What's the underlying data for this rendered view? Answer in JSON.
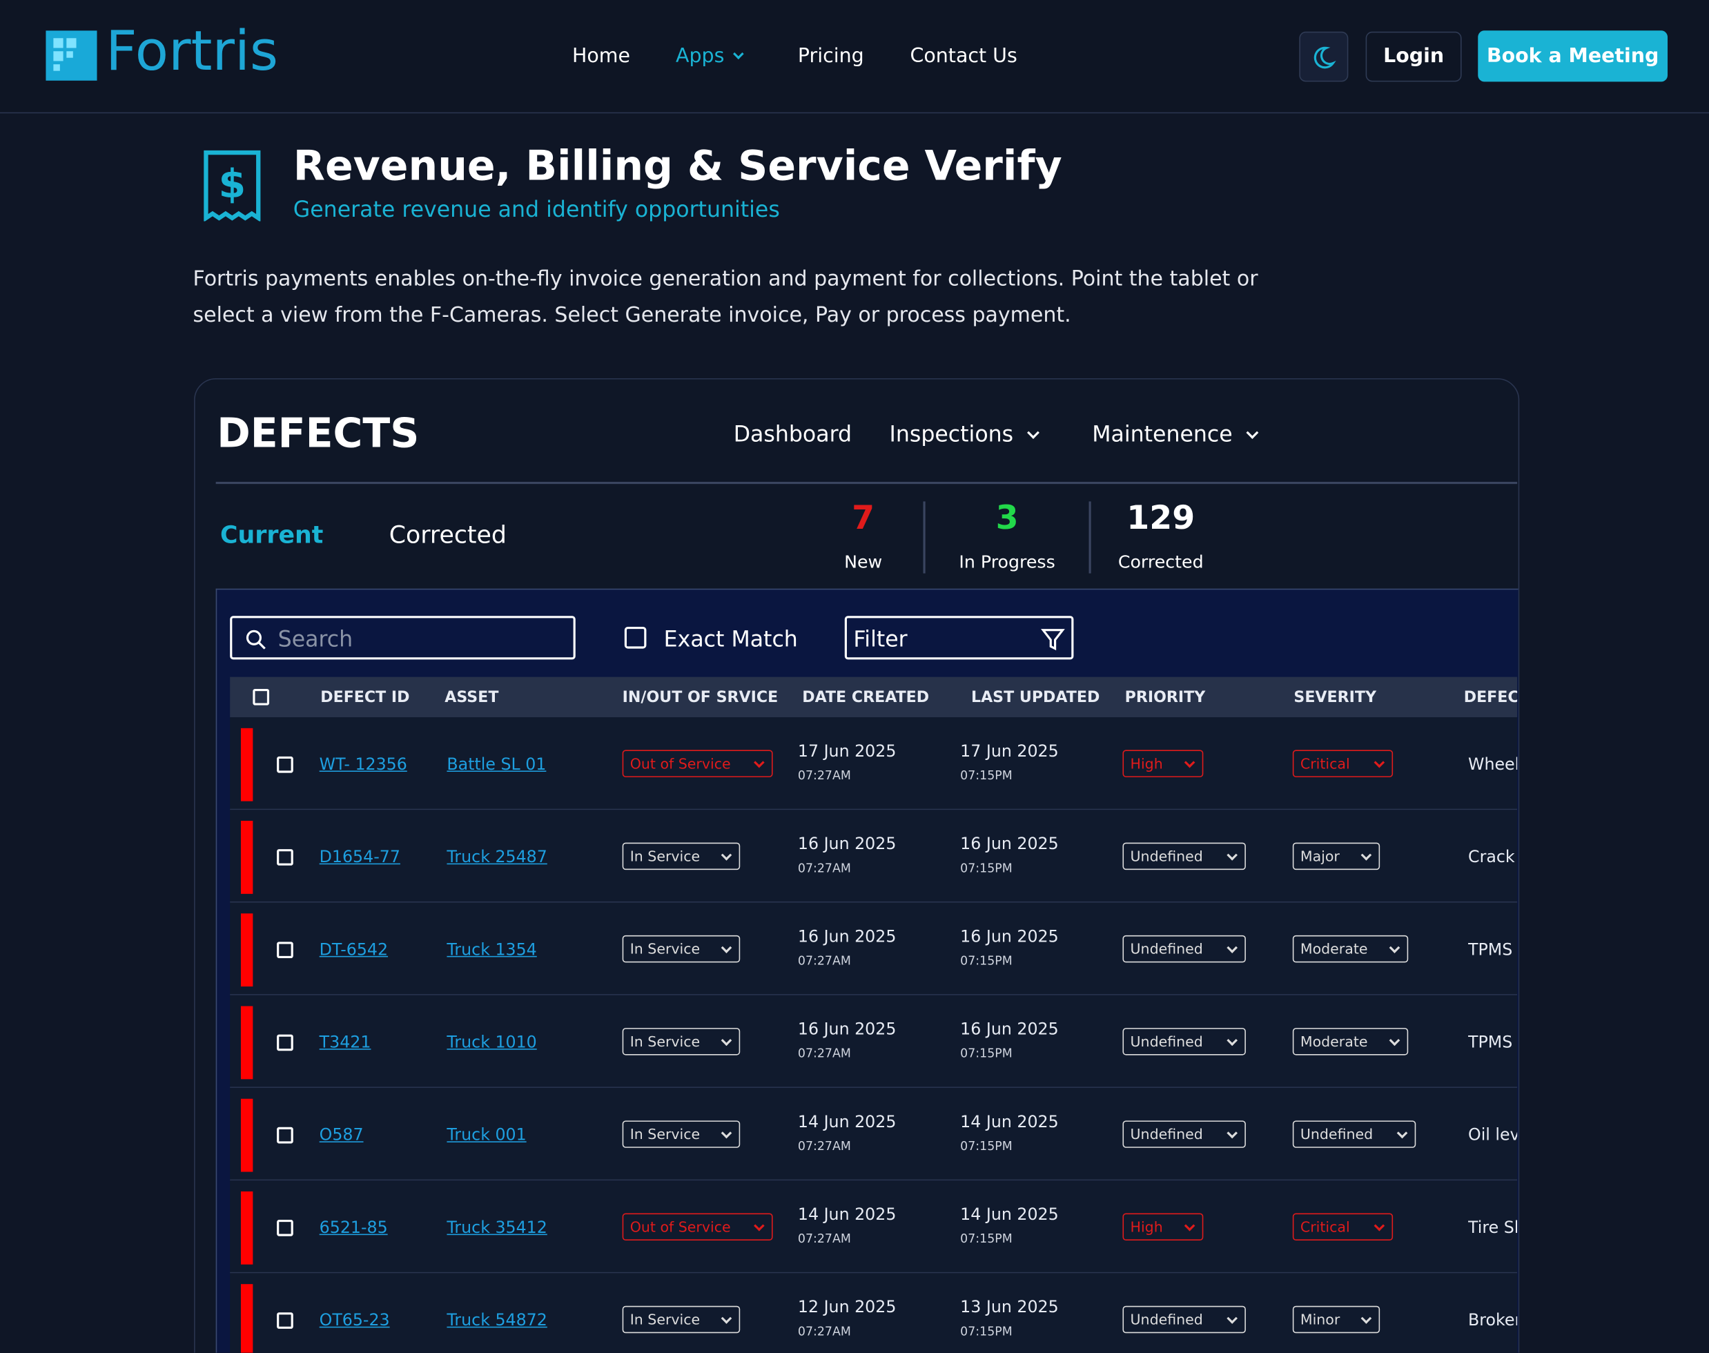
{
  "nav": {
    "brand": "Fortris",
    "links": [
      "Home",
      "Apps",
      "Pricing",
      "Contact Us"
    ],
    "login": "Login",
    "cta": "Book a Meeting"
  },
  "header": {
    "title": "Revenue, Billing & Service Verify",
    "subtitle": "Generate revenue and identify opportunities"
  },
  "description": "Fortris payments enables on-the-fly invoice generation and payment for collections. Point the tablet or select a view from the F-Cameras. Select Generate invoice, Pay or process payment.",
  "app": {
    "title": "DEFECTS",
    "menu": [
      "Dashboard",
      "Inspections",
      "Maintenence"
    ],
    "tabs": [
      "Current",
      "Corrected"
    ],
    "stats": [
      {
        "value": "7",
        "label": "New"
      },
      {
        "value": "3",
        "label": "In Progress"
      },
      {
        "value": "129",
        "label": "Corrected"
      }
    ],
    "search": "Search",
    "exact_match": "Exact Match",
    "filter": "Filter",
    "table": {
      "columns": [
        "DEFECT ID",
        "ASSET",
        "IN/OUT OF SRVICE",
        "DATE CREATED",
        "LAST UPDATED",
        "PRIORITY",
        "SEVERITY",
        "DEFECT"
      ],
      "rows": [
        [
          "WT- 12356",
          "Battle SL 01",
          "Out of Service",
          "17 Jun 2025",
          "07:27AM",
          "17 Jun 2025",
          "07:15PM",
          "High",
          "Critical",
          "Wheel"
        ],
        [
          "D1654-77",
          "Truck 25487",
          "In Service",
          "16 Jun 2025",
          "07:27AM",
          "16 Jun 2025",
          "07:15PM",
          "Undefined",
          "Major",
          "Crack"
        ],
        [
          "DT-6542",
          "Truck 1354",
          "In Service",
          "16 Jun 2025",
          "07:27AM",
          "16 Jun 2025",
          "07:15PM",
          "Undefined",
          "Moderate",
          "TPMS"
        ],
        [
          "T3421",
          "Truck 1010",
          "In Service",
          "16 Jun 2025",
          "07:27AM",
          "16 Jun 2025",
          "07:15PM",
          "Undefined",
          "Moderate",
          "TPMS"
        ],
        [
          "O587",
          "Truck 001",
          "In Service",
          "14 Jun 2025",
          "07:27AM",
          "14 Jun 2025",
          "07:15PM",
          "Undefined",
          "Undefined",
          "Oil lev"
        ],
        [
          "6521-85",
          "Truck 35412",
          "Out of Service",
          "14 Jun 2025",
          "07:27AM",
          "14 Jun 2025",
          "07:15PM",
          "High",
          "Critical",
          "Tire Sl"
        ],
        [
          "OT65-23",
          "Truck 54872",
          "In Service",
          "12 Jun 2025",
          "07:27AM",
          "13 Jun 2025",
          "07:15PM",
          "Undefined",
          "Minor",
          "Broken"
        ]
      ]
    }
  }
}
